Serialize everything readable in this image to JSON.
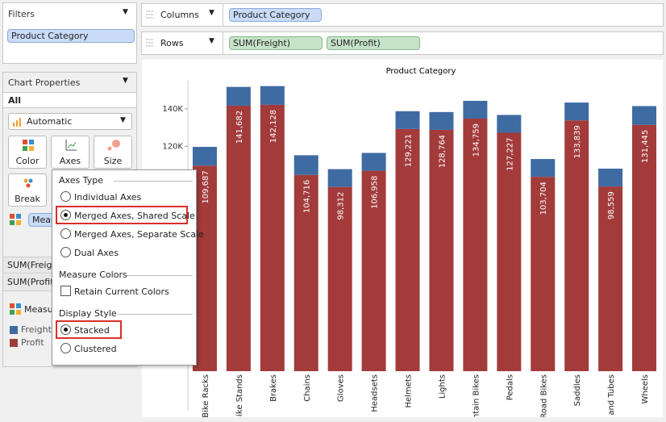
{
  "filters": {
    "title": "Filters",
    "pill": "Product Category"
  },
  "columns": {
    "label": "Columns",
    "pill": "Product Category"
  },
  "rows": {
    "label": "Rows",
    "pills": [
      "SUM(Freight)",
      "SUM(Profit)"
    ]
  },
  "chart_properties": {
    "title": "Chart Properties",
    "tab": "All",
    "mark_type": "Automatic",
    "buttons": [
      "Color",
      "Axes",
      "Size",
      "Break"
    ],
    "measure_pill": "Meas",
    "measure_rows": [
      "SUM(Freigh",
      "SUM(Profit)"
    ],
    "legend_title": "Measu"
  },
  "axes_popup": {
    "axes_type": {
      "title": "Axes Type",
      "options": [
        "Individual Axes",
        "Merged Axes, Shared Scale",
        "Merged Axes, Separate Scale",
        "Dual Axes"
      ]
    },
    "measure_colors": {
      "title": "Measure Colors",
      "option": "Retain Current Colors"
    },
    "display_style": {
      "title": "Display Style",
      "options": [
        "Stacked",
        "Clustered"
      ]
    }
  },
  "chart_data": {
    "type": "stacked_bar",
    "title": "Product Category",
    "categories": [
      "Bike Racks",
      "Bike Stands",
      "Brakes",
      "Chains",
      "Gloves",
      "Headsets",
      "Helmets",
      "Lights",
      "Mountain Bikes",
      "Pedals",
      "Road Bikes",
      "Saddles",
      "Tires and Tubes",
      "Wheels"
    ],
    "series": [
      {
        "name": "Freight",
        "color": "#3f6ba3",
        "values": [
          10000,
          10000,
          10000,
          10500,
          9500,
          9500,
          9500,
          9500,
          9500,
          9500,
          9500,
          9500,
          9500,
          10000
        ]
      },
      {
        "name": "Profit",
        "color": "#a33b3b",
        "values": [
          109687,
          141682,
          142128,
          104716,
          98312,
          106958,
          129221,
          128764,
          134759,
          127227,
          103704,
          133839,
          98559,
          131445
        ],
        "value_labels": [
          "109,687",
          "141,682",
          "142,128",
          "104,716",
          "98,312",
          "106,958",
          "129,221",
          "128,764",
          "134,759",
          "127,227",
          "103,704",
          "133,839",
          "98,559",
          "131,445"
        ]
      }
    ],
    "ylim": [
      0,
      155000
    ],
    "yticks": [
      {
        "value": 120000,
        "label": "120K"
      },
      {
        "value": 140000,
        "label": "140K"
      }
    ]
  }
}
